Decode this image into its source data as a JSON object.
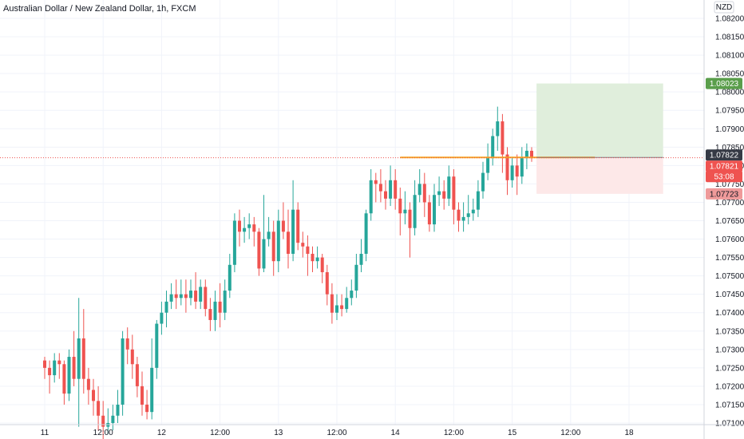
{
  "chart_data": {
    "type": "candlestick",
    "title": "Australian Dollar / New Zealand Dollar, 1h, FXCM",
    "currency": "NZD",
    "ylim": [
      1.07095,
      1.0823
    ],
    "yticks": [
      1.071,
      1.0715,
      1.072,
      1.0725,
      1.073,
      1.0735,
      1.074,
      1.0745,
      1.075,
      1.0755,
      1.076,
      1.0765,
      1.077,
      1.0775,
      1.078,
      1.0785,
      1.079,
      1.0795,
      1.08,
      1.0805,
      1.081,
      1.0815,
      1.082
    ],
    "ytick_labels": [
      "1.07100",
      "1.07150",
      "1.07200",
      "1.07250",
      "1.07300",
      "1.07350",
      "1.07400",
      "1.07450",
      "1.07500",
      "1.07550",
      "1.07600",
      "1.07650",
      "1.07700",
      "1.07750",
      "1.07800",
      "1.07850",
      "1.07900",
      "1.07950",
      "1.08000",
      "1.08050",
      "1.08100",
      "1.08150",
      "1.08200"
    ],
    "x_labels": [
      "11",
      "12:00",
      "12",
      "12:00",
      "13",
      "12:00",
      "14",
      "12:00",
      "15",
      "12:00",
      "18"
    ],
    "x_label_pos": [
      0,
      12,
      24,
      36,
      48,
      60,
      72,
      84,
      96,
      108,
      120
    ],
    "candles": [
      [
        1.0727,
        1.0725,
        1.0728,
        1.0722
      ],
      [
        1.0725,
        1.0723,
        1.0727,
        1.0718
      ],
      [
        1.0723,
        1.0727,
        1.0729,
        1.0721
      ],
      [
        1.0727,
        1.0726,
        1.0729,
        1.0722
      ],
      [
        1.0726,
        1.0718,
        1.0727,
        1.0715
      ],
      [
        1.0718,
        1.0728,
        1.073,
        1.0716
      ],
      [
        1.0728,
        1.0722,
        1.0735,
        1.072
      ],
      [
        1.0722,
        1.0733,
        1.0744,
        1.0709
      ],
      [
        1.0733,
        1.0722,
        1.0741,
        1.0718
      ],
      [
        1.0722,
        1.0719,
        1.0725,
        1.0715
      ],
      [
        1.0719,
        1.0716,
        1.0722,
        1.0712
      ],
      [
        1.0716,
        1.0712,
        1.072,
        1.0708
      ],
      [
        1.0712,
        1.0709,
        1.0716,
        1.0705
      ],
      [
        1.0709,
        1.071,
        1.0714,
        1.0707
      ],
      [
        1.071,
        1.0712,
        1.0715,
        1.0708
      ],
      [
        1.0712,
        1.0715,
        1.0719,
        1.071
      ],
      [
        1.0715,
        1.0733,
        1.0735,
        1.0712
      ],
      [
        1.0733,
        1.073,
        1.0736,
        1.0726
      ],
      [
        1.073,
        1.0726,
        1.0734,
        1.0722
      ],
      [
        1.0726,
        1.072,
        1.0728,
        1.0717
      ],
      [
        1.072,
        1.0715,
        1.0724,
        1.0712
      ],
      [
        1.0715,
        1.0713,
        1.0719,
        1.0711
      ],
      [
        1.0713,
        1.0725,
        1.0733,
        1.0711
      ],
      [
        1.0725,
        1.0737,
        1.0738,
        1.0722
      ],
      [
        1.0737,
        1.074,
        1.0743,
        1.0734
      ],
      [
        1.074,
        1.0743,
        1.0746,
        1.0736
      ],
      [
        1.0743,
        1.0745,
        1.0748,
        1.0741
      ],
      [
        1.0745,
        1.0744,
        1.0749,
        1.0741
      ],
      [
        1.0744,
        1.0745,
        1.0749,
        1.0742
      ],
      [
        1.0745,
        1.0744,
        1.0749,
        1.074
      ],
      [
        1.0744,
        1.0746,
        1.0749,
        1.0742
      ],
      [
        1.0746,
        1.0743,
        1.0751,
        1.0741
      ],
      [
        1.0743,
        1.0747,
        1.0749,
        1.0741
      ],
      [
        1.0747,
        1.0741,
        1.0749,
        1.0739
      ],
      [
        1.0741,
        1.0738,
        1.0744,
        1.0735
      ],
      [
        1.0738,
        1.0743,
        1.0746,
        1.0735
      ],
      [
        1.0743,
        1.074,
        1.0748,
        1.0736
      ],
      [
        1.074,
        1.0746,
        1.0749,
        1.0738
      ],
      [
        1.0746,
        1.0753,
        1.0756,
        1.0744
      ],
      [
        1.0753,
        1.0765,
        1.0767,
        1.0751
      ],
      [
        1.0765,
        1.0762,
        1.0768,
        1.0758
      ],
      [
        1.0762,
        1.0763,
        1.0766,
        1.0759
      ],
      [
        1.0763,
        1.0764,
        1.0767,
        1.076
      ],
      [
        1.0764,
        1.0762,
        1.0766,
        1.0758
      ],
      [
        1.0762,
        1.0752,
        1.0763,
        1.075
      ],
      [
        1.0752,
        1.076,
        1.0772,
        1.0751
      ],
      [
        1.076,
        1.0762,
        1.0766,
        1.0758
      ],
      [
        1.0762,
        1.0754,
        1.0765,
        1.075
      ],
      [
        1.0754,
        1.0765,
        1.0768,
        1.0751
      ],
      [
        1.0765,
        1.0762,
        1.077,
        1.076
      ],
      [
        1.0762,
        1.0756,
        1.0768,
        1.0752
      ],
      [
        1.0756,
        1.0768,
        1.0776,
        1.0754
      ],
      [
        1.0768,
        1.0759,
        1.077,
        1.0757
      ],
      [
        1.0759,
        1.0758,
        1.0762,
        1.0755
      ],
      [
        1.0758,
        1.0756,
        1.0761,
        1.075
      ],
      [
        1.0756,
        1.0754,
        1.0758,
        1.0751
      ],
      [
        1.0754,
        1.0755,
        1.0758,
        1.0752
      ],
      [
        1.0755,
        1.0751,
        1.0756,
        1.0748
      ],
      [
        1.0751,
        1.0745,
        1.0753,
        1.0742
      ],
      [
        1.0745,
        1.074,
        1.0748,
        1.0737
      ],
      [
        1.074,
        1.0742,
        1.0745,
        1.0738
      ],
      [
        1.0742,
        1.0741,
        1.0745,
        1.0739
      ],
      [
        1.0741,
        1.0744,
        1.0747,
        1.074
      ],
      [
        1.0744,
        1.0746,
        1.0749,
        1.0742
      ],
      [
        1.0746,
        1.0753,
        1.0756,
        1.0744
      ],
      [
        1.0753,
        1.0756,
        1.076,
        1.0751
      ],
      [
        1.0756,
        1.0767,
        1.0768,
        1.0754
      ],
      [
        1.0767,
        1.0776,
        1.0779,
        1.0765
      ],
      [
        1.0776,
        1.0775,
        1.0778,
        1.077
      ],
      [
        1.0775,
        1.0773,
        1.0779,
        1.077
      ],
      [
        1.0773,
        1.0771,
        1.0776,
        1.0768
      ],
      [
        1.0771,
        1.0776,
        1.078,
        1.0769
      ],
      [
        1.0776,
        1.0771,
        1.0779,
        1.0768
      ],
      [
        1.0771,
        1.0767,
        1.0774,
        1.0761
      ],
      [
        1.0767,
        1.0768,
        1.0773,
        1.0764
      ],
      [
        1.0768,
        1.0763,
        1.077,
        1.0755
      ],
      [
        1.0763,
        1.0772,
        1.0776,
        1.0761
      ],
      [
        1.0772,
        1.0775,
        1.0779,
        1.077
      ],
      [
        1.0775,
        1.077,
        1.0778,
        1.0766
      ],
      [
        1.077,
        1.0764,
        1.0772,
        1.0762
      ],
      [
        1.0764,
        1.0772,
        1.0775,
        1.0762
      ],
      [
        1.0772,
        1.0773,
        1.0777,
        1.0769
      ],
      [
        1.0773,
        1.0771,
        1.0776,
        1.0768
      ],
      [
        1.0771,
        1.0777,
        1.078,
        1.0769
      ],
      [
        1.0777,
        1.0768,
        1.0779,
        1.0764
      ],
      [
        1.0768,
        1.0765,
        1.077,
        1.0762
      ],
      [
        1.0765,
        1.0766,
        1.077,
        1.0762
      ],
      [
        1.0766,
        1.0767,
        1.0772,
        1.0764
      ],
      [
        1.0767,
        1.0768,
        1.0771,
        1.0765
      ],
      [
        1.0768,
        1.0773,
        1.0776,
        1.0766
      ],
      [
        1.0773,
        1.0778,
        1.0781,
        1.0771
      ],
      [
        1.0778,
        1.0782,
        1.0786,
        1.0776
      ],
      [
        1.0782,
        1.0788,
        1.079,
        1.078
      ],
      [
        1.0788,
        1.0792,
        1.0796,
        1.0784
      ],
      [
        1.0792,
        1.0783,
        1.0794,
        1.0778
      ],
      [
        1.0783,
        1.0776,
        1.0785,
        1.0772
      ],
      [
        1.0776,
        1.078,
        1.0782,
        1.0774
      ],
      [
        1.078,
        1.0777,
        1.0783,
        1.0772
      ],
      [
        1.0777,
        1.0782,
        1.0785,
        1.0775
      ],
      [
        1.0782,
        1.0784,
        1.0786,
        1.0779
      ],
      [
        1.0784,
        1.0782,
        1.0785,
        1.0781
      ]
    ],
    "colors": {
      "up": "#26a69a",
      "down": "#ef5350",
      "profit_zone": "#e0eedc",
      "loss_zone": "#fde8e8",
      "entry_line": "#f5a623",
      "target_badge": "#5a9e4b",
      "stop_badge": "#ef9a9a",
      "price_badge": "#ef5350",
      "current_badge": "#363a45",
      "grid": "#f0f3fa"
    },
    "position": {
      "entry": 1.07822,
      "target": 1.08023,
      "stop": 1.07723,
      "start_index": 101,
      "end_index": 127
    },
    "entry_line": {
      "value": 1.07822,
      "start_index": 73,
      "end_index": 113
    },
    "current_price": 1.07821,
    "badges": {
      "current": "1.07822",
      "target": "1.08023",
      "price": "1.07821",
      "countdown": "53:08",
      "stop": "1.07723"
    }
  }
}
